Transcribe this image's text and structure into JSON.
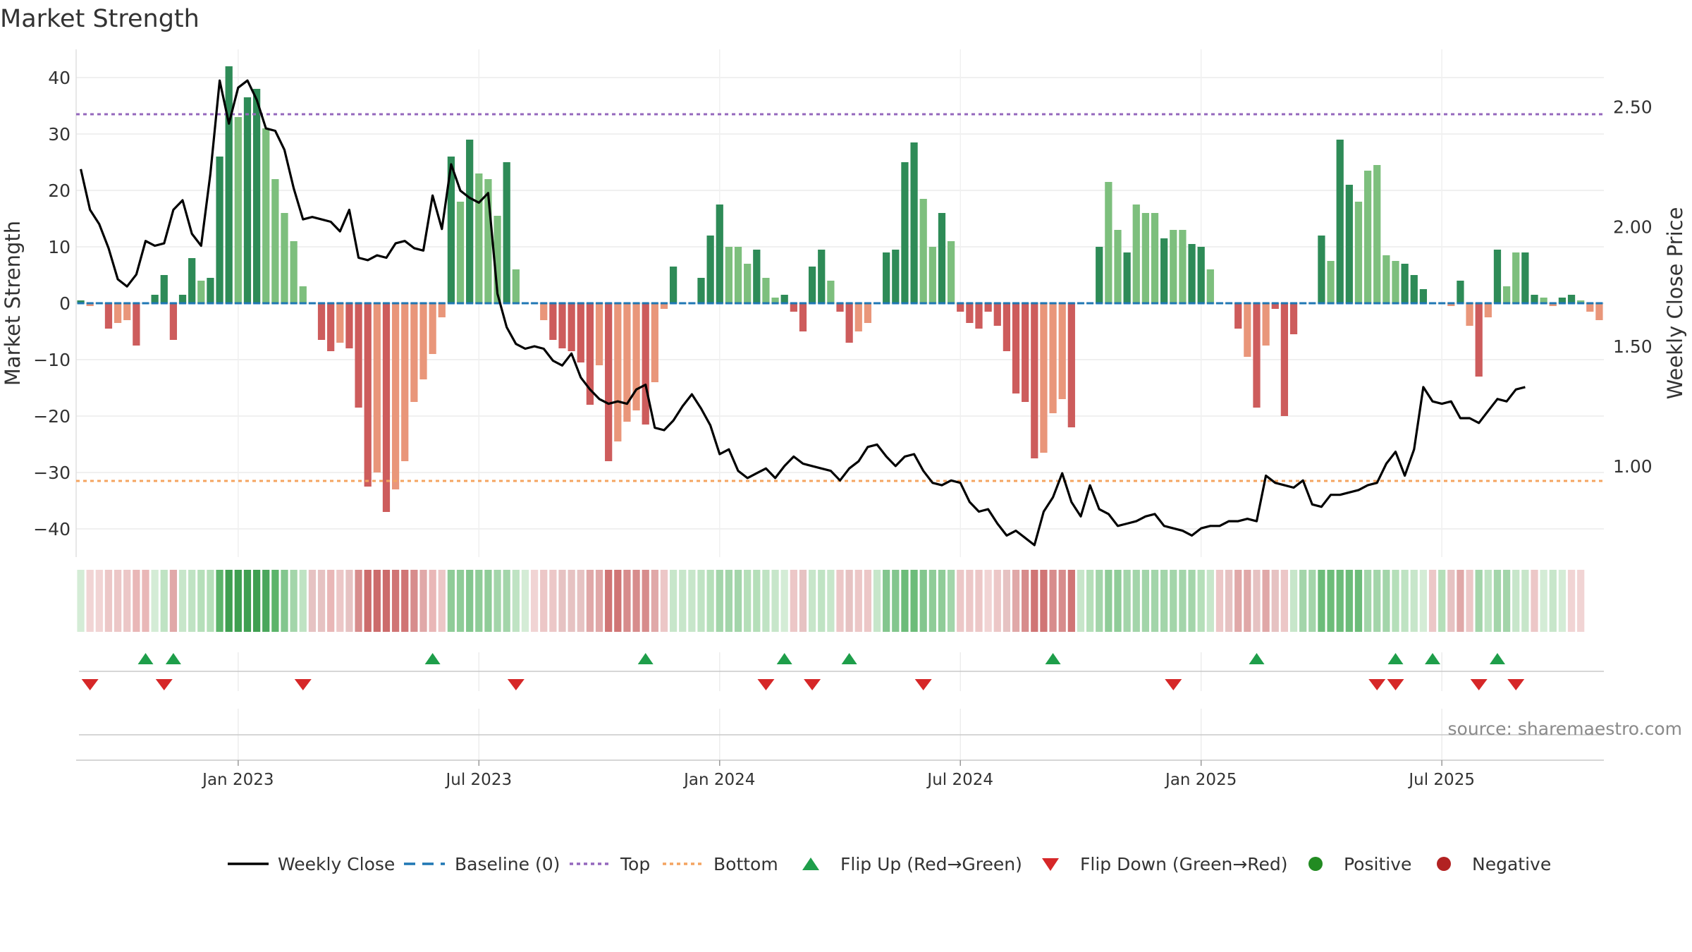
{
  "chart_data": {
    "type": "bar",
    "title": "Market Strength",
    "ylabel_left": "Market Strength",
    "ylabel_right": "Weekly Close Price",
    "ylim_left": [
      -45,
      45
    ],
    "yticks_left": [
      "40",
      "30",
      "20",
      "10",
      "0",
      "−10",
      "−20",
      "−30",
      "−40"
    ],
    "yticks_left_values": [
      40,
      30,
      20,
      10,
      0,
      -10,
      -20,
      -30,
      -40
    ],
    "ylim_right": [
      0.62,
      2.74
    ],
    "yticks_right": [
      "2.50",
      "2.00",
      "1.50",
      "1.00"
    ],
    "yticks_right_values": [
      2.5,
      2.0,
      1.5,
      1.0
    ],
    "x_ticks": [
      "Jan 2023",
      "Jul 2023",
      "Jan 2024",
      "Jul 2024",
      "Jan 2025",
      "Jul 2025"
    ],
    "x_tick_weeks": [
      17,
      43,
      69,
      95,
      121,
      147
    ],
    "top_line": 33.5,
    "bottom_line": -31.5,
    "strength": [
      0.5,
      -0.5,
      0,
      -4.5,
      -3.5,
      -3,
      -7.5,
      0,
      1.5,
      5,
      -6.5,
      1.5,
      8,
      4,
      4.5,
      26,
      42,
      33,
      36.5,
      38,
      31,
      22,
      16,
      11,
      3,
      0,
      -6.5,
      -8.5,
      -7,
      -8,
      -18.5,
      -32.5,
      -30,
      -37,
      -33,
      -28,
      -17.5,
      -13.5,
      -9,
      -2.5,
      26,
      18,
      29,
      23,
      22,
      15.5,
      25,
      6,
      0,
      0,
      -3,
      -6.5,
      -8,
      -8.5,
      -10.5,
      -18,
      -11,
      -28,
      -24.5,
      -21,
      -19,
      -21.5,
      -14,
      -1,
      6.5,
      0,
      0,
      4.5,
      12,
      17.5,
      10,
      10,
      7,
      9.5,
      4.5,
      1,
      1.5,
      -1.5,
      -5,
      6.5,
      9.5,
      4,
      -1.5,
      -7,
      -5,
      -3.5,
      0,
      9,
      9.5,
      25,
      28.5,
      18.5,
      10,
      16,
      11,
      -1.5,
      -3.5,
      -4.5,
      -1.5,
      -4,
      -8.5,
      -16,
      -17.5,
      -27.5,
      -26.5,
      -19.5,
      -17,
      -22,
      0,
      0,
      10,
      21.5,
      13,
      9,
      17.5,
      16,
      16,
      11.5,
      13,
      13,
      10.5,
      10,
      6,
      0,
      0,
      -4.5,
      -9.5,
      -18.5,
      -7.5,
      -1,
      -20,
      -5.5,
      0,
      0,
      12,
      7.5,
      29,
      21,
      18,
      23.5,
      24.5,
      8.5,
      7.5,
      7,
      5,
      2.5,
      0,
      0,
      -0.5,
      4,
      -4,
      -13,
      -2.5,
      9.5,
      3,
      9,
      9,
      1.5,
      1,
      -0.5,
      1,
      1.5,
      0.5,
      -1.5,
      -3
    ],
    "bar_shade": [
      "d",
      "l",
      "d",
      "d",
      "l",
      "l",
      "d",
      "d",
      "d",
      "d",
      "d",
      "d",
      "d",
      "l",
      "d",
      "d",
      "d",
      "l",
      "d",
      "d",
      "l",
      "l",
      "l",
      "l",
      "l",
      "d",
      "d",
      "d",
      "l",
      "d",
      "d",
      "d",
      "l",
      "d",
      "l",
      "l",
      "l",
      "l",
      "l",
      "l",
      "d",
      "l",
      "d",
      "l",
      "l",
      "l",
      "d",
      "l",
      "d",
      "d",
      "l",
      "d",
      "d",
      "d",
      "d",
      "d",
      "l",
      "d",
      "l",
      "l",
      "l",
      "d",
      "l",
      "l",
      "d",
      "d",
      "d",
      "d",
      "d",
      "d",
      "l",
      "l",
      "l",
      "d",
      "l",
      "l",
      "d",
      "d",
      "d",
      "d",
      "d",
      "l",
      "d",
      "d",
      "l",
      "l",
      "d",
      "d",
      "d",
      "d",
      "d",
      "l",
      "l",
      "d",
      "l",
      "d",
      "d",
      "d",
      "d",
      "d",
      "d",
      "d",
      "d",
      "d",
      "l",
      "l",
      "l",
      "d",
      "d",
      "d",
      "d",
      "l",
      "l",
      "d",
      "l",
      "l",
      "l",
      "d",
      "l",
      "l",
      "d",
      "d",
      "l",
      "d",
      "d",
      "d",
      "l",
      "d",
      "l",
      "d",
      "d",
      "d",
      "d",
      "l",
      "d",
      "l",
      "d",
      "d",
      "l",
      "l",
      "l",
      "l",
      "l",
      "d",
      "d",
      "d",
      "d",
      "d",
      "l",
      "d",
      "l",
      "d",
      "l",
      "d",
      "l",
      "l",
      "d",
      "d",
      "l",
      "l",
      "d",
      "d"
    ],
    "weekly_close": [
      2.24,
      2.07,
      2.01,
      1.91,
      1.78,
      1.75,
      1.8,
      1.94,
      1.92,
      1.93,
      2.07,
      2.11,
      1.97,
      1.92,
      2.22,
      2.61,
      2.43,
      2.58,
      2.61,
      2.53,
      2.41,
      2.4,
      2.32,
      2.16,
      2.03,
      2.04,
      2.03,
      2.02,
      1.98,
      2.07,
      1.87,
      1.86,
      1.88,
      1.87,
      1.93,
      1.94,
      1.91,
      1.9,
      2.13,
      1.99,
      2.26,
      2.15,
      2.12,
      2.1,
      2.14,
      1.72,
      1.58,
      1.51,
      1.49,
      1.5,
      1.49,
      1.44,
      1.42,
      1.47,
      1.37,
      1.32,
      1.28,
      1.26,
      1.27,
      1.26,
      1.32,
      1.34,
      1.16,
      1.15,
      1.19,
      1.25,
      1.3,
      1.24,
      1.17,
      1.05,
      1.07,
      0.98,
      0.95,
      0.97,
      0.99,
      0.95,
      1.0,
      1.04,
      1.01,
      1.0,
      0.99,
      0.98,
      0.94,
      0.99,
      1.02,
      1.08,
      1.09,
      1.04,
      1.0,
      1.04,
      1.05,
      0.98,
      0.93,
      0.92,
      0.94,
      0.93,
      0.85,
      0.81,
      0.82,
      0.76,
      0.71,
      0.73,
      0.7,
      0.67,
      0.81,
      0.87,
      0.97,
      0.85,
      0.79,
      0.92,
      0.82,
      0.8,
      0.75,
      0.76,
      0.77,
      0.79,
      0.8,
      0.75,
      0.74,
      0.73,
      0.71,
      0.74,
      0.75,
      0.75,
      0.77,
      0.77,
      0.78,
      0.77,
      0.96,
      0.93,
      0.92,
      0.91,
      0.94,
      0.84,
      0.83,
      0.88,
      0.88,
      0.89,
      0.9,
      0.92,
      0.93,
      1.01,
      1.06,
      0.96,
      1.07,
      1.33,
      1.27,
      1.26,
      1.27,
      1.2,
      1.2,
      1.18,
      1.23,
      1.28,
      1.27,
      1.32,
      1.33
    ],
    "regime_color": [
      "#d4ecd6",
      "#f1d4d4",
      "#f1d4d4",
      "#ecc7c7",
      "#ecc7c7",
      "#ecc7c7",
      "#e9b7b7",
      "#e9b7b7",
      "#d4ecd6",
      "#bfe3c3",
      "#e0a8a8",
      "#c7e6ca",
      "#bfe3c3",
      "#b5dfb9",
      "#b5dfb9",
      "#5cb46a",
      "#3f9f51",
      "#3f9f51",
      "#3f9f51",
      "#3f9f51",
      "#4aa75c",
      "#5cb46a",
      "#83c68e",
      "#a3d5aa",
      "#bfe3c3",
      "#e6c2c2",
      "#e6c2c2",
      "#e9b7b7",
      "#ecc7c7",
      "#e6c2c2",
      "#d78c8c",
      "#cc6b6b",
      "#cc6b6b",
      "#cc6b6b",
      "#d07575",
      "#d07575",
      "#d78c8c",
      "#e0a8a8",
      "#e9b7b7",
      "#ecc7c7",
      "#8fcc98",
      "#8fcc98",
      "#83c68e",
      "#8fcc98",
      "#8fcc98",
      "#a3d5aa",
      "#a3d5aa",
      "#bfe3c3",
      "#d4ecd6",
      "#f1d4d4",
      "#ecc7c7",
      "#ecc7c7",
      "#e6c2c2",
      "#e6c2c2",
      "#e6c2c2",
      "#e0a8a8",
      "#e0a8a8",
      "#d07575",
      "#d07575",
      "#d78c8c",
      "#d78c8c",
      "#d78c8c",
      "#e0a8a8",
      "#ecc7c7",
      "#c7e6ca",
      "#c7e6ca",
      "#c7e6ca",
      "#bfe3c3",
      "#b5dfb9",
      "#a3d5aa",
      "#a3d5aa",
      "#a3d5aa",
      "#b5dfb9",
      "#b5dfb9",
      "#bfe3c3",
      "#c7e6ca",
      "#d4ecd6",
      "#ecc7c7",
      "#e6c2c2",
      "#c7e6ca",
      "#bfe3c3",
      "#c7e6ca",
      "#ecc7c7",
      "#e6c2c2",
      "#ecc7c7",
      "#ecc7c7",
      "#c7e6ca",
      "#83c68e",
      "#83c68e",
      "#6cbc79",
      "#6cbc79",
      "#83c68e",
      "#8fcc98",
      "#8fcc98",
      "#a3d5aa",
      "#ecc7c7",
      "#ecc7c7",
      "#ecc7c7",
      "#f1d4d4",
      "#ecc7c7",
      "#e6c2c2",
      "#e0a8a8",
      "#d78c8c",
      "#d07575",
      "#d07575",
      "#d78c8c",
      "#d78c8c",
      "#d07575",
      "#c7e6ca",
      "#b5dfb9",
      "#a3d5aa",
      "#8fcc98",
      "#8fcc98",
      "#a3d5aa",
      "#a3d5aa",
      "#a3d5aa",
      "#a3d5aa",
      "#a3d5aa",
      "#a3d5aa",
      "#a3d5aa",
      "#a3d5aa",
      "#b5dfb9",
      "#c7e6ca",
      "#ecc7c7",
      "#e6c2c2",
      "#e0a8a8",
      "#e0a8a8",
      "#e6c2c2",
      "#e0a8a8",
      "#e6c2c2",
      "#ecc7c7",
      "#c7e6ca",
      "#a3d5aa",
      "#a3d5aa",
      "#6cbc79",
      "#6cbc79",
      "#6cbc79",
      "#6cbc79",
      "#6cbc79",
      "#a3d5aa",
      "#a3d5aa",
      "#a3d5aa",
      "#b5dfb9",
      "#bfe3c3",
      "#c7e6ca",
      "#d4ecd6",
      "#ecc7c7",
      "#b5dfb9",
      "#e6c2c2",
      "#e0a8a8",
      "#ecc7c7",
      "#a3d5aa",
      "#bfe3c3",
      "#a3d5aa",
      "#a3d5aa",
      "#c7e6ca",
      "#c7e6ca",
      "#ecc7c7",
      "#d4ecd6",
      "#c7e6ca",
      "#d4ecd6",
      "#f1d4d4",
      "#f1d4d4"
    ],
    "flip_up_weeks": [
      7,
      10,
      38,
      61,
      76,
      83,
      105,
      127,
      142,
      146,
      153
    ],
    "flip_down_weeks": [
      1,
      9,
      24,
      47,
      74,
      79,
      91,
      118,
      140,
      142,
      151,
      155
    ],
    "source": "source: sharemaestro.com",
    "legend": [
      "Weekly Close",
      "Baseline (0)",
      "Top",
      "Bottom",
      "Flip Up (Red→Green)",
      "Flip Down (Green→Red)",
      "Positive",
      "Negative"
    ],
    "colors": {
      "pos_dark": "#2e8b57",
      "pos_light": "#7dbf7d",
      "neg_dark": "#cd5c5c",
      "neg_light": "#e9967a",
      "price": "#000000",
      "baseline": "#1f77b4",
      "top": "#9467bd",
      "bottom": "#f4a460",
      "flip_up": "#1e9e4a",
      "flip_down": "#d62728",
      "positive": "#228b22",
      "negative": "#b22222"
    }
  }
}
